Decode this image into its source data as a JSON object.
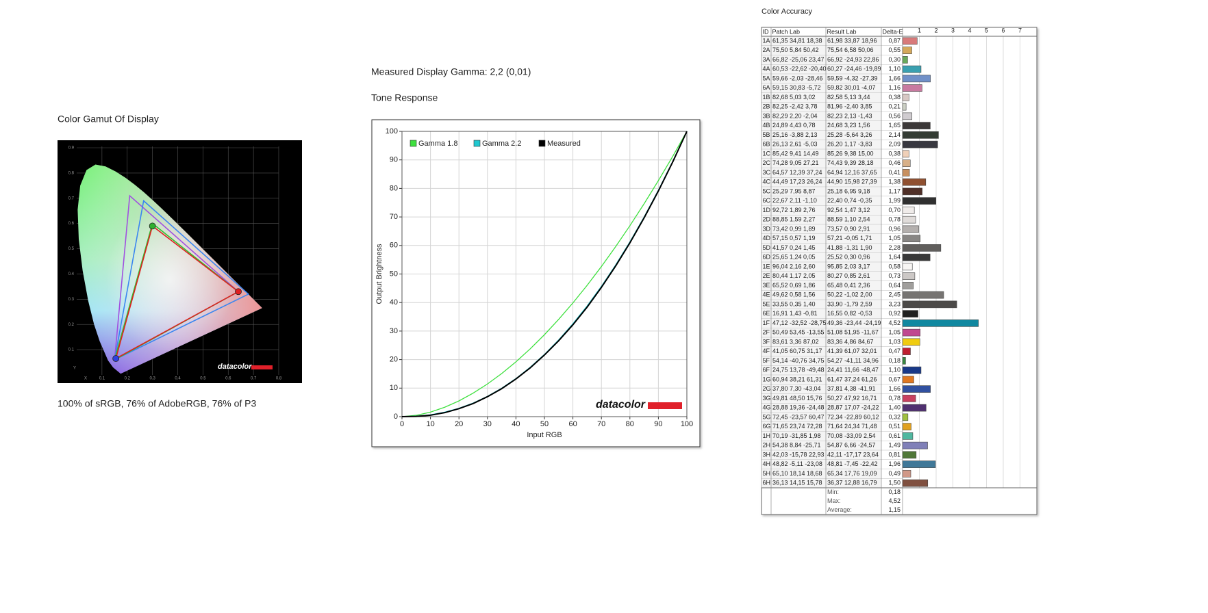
{
  "chart_data": [
    {
      "type": "gamut",
      "title": "Color Gamut Of Display",
      "caption": "100% of sRGB, 76% of AdobeRGB, 76% of P3",
      "x_label": "X",
      "y_label": "Y",
      "xlim": [
        0,
        0.8
      ],
      "ylim": [
        0,
        0.9
      ],
      "xticks": [
        0.1,
        0.2,
        0.3,
        0.4,
        0.5,
        0.6,
        0.7,
        0.8
      ],
      "yticks": [
        0.1,
        0.2,
        0.3,
        0.4,
        0.5,
        0.6,
        0.7,
        0.8,
        0.9
      ],
      "grid": true,
      "watermark": "datacolor",
      "series": [
        {
          "color": "#a050e0",
          "x": [
            0.64,
            0.21,
            0.15
          ],
          "y": [
            0.33,
            0.71,
            0.06
          ]
        },
        {
          "color": "#3a86f0",
          "x": [
            0.68,
            0.265,
            0.15
          ],
          "y": [
            0.32,
            0.69,
            0.06
          ]
        },
        {
          "color": "#30c030",
          "x": [
            0.64,
            0.3,
            0.15
          ],
          "y": [
            0.33,
            0.6,
            0.06
          ]
        },
        {
          "color": "#e02020",
          "x": [
            0.64,
            0.3,
            0.155
          ],
          "y": [
            0.33,
            0.59,
            0.065
          ],
          "marker_colors": [
            "#e02020",
            "#30b030",
            "#3040e0"
          ]
        }
      ]
    },
    {
      "type": "line",
      "heading": "Measured Display Gamma: 2,2 (0,01)",
      "title": "Tone Response",
      "x_label": "Input RGB",
      "y_label": "Output Brightness",
      "x": [
        0,
        5,
        10,
        15,
        20,
        25,
        30,
        35,
        40,
        45,
        50,
        55,
        60,
        65,
        70,
        75,
        80,
        85,
        90,
        95,
        100
      ],
      "series": [
        {
          "name": "Gamma 1.8",
          "color": "#3ee03e",
          "values": [
            0,
            0.46,
            1.58,
            3.29,
            5.52,
            8.25,
            11.45,
            15.11,
            19.22,
            23.76,
            28.72,
            34.09,
            39.87,
            46.05,
            52.62,
            59.58,
            66.92,
            74.64,
            82.73,
            91.18,
            100
          ]
        },
        {
          "name": "Gamma 2.2",
          "color": "#20c8d0",
          "values": [
            0,
            0.14,
            0.63,
            1.54,
            2.9,
            4.74,
            7.08,
            9.93,
            13.32,
            17.26,
            21.76,
            26.84,
            32.51,
            38.76,
            45.62,
            53.11,
            61.21,
            69.94,
            79.31,
            89.33,
            100
          ]
        },
        {
          "name": "Measured",
          "color": "#000000",
          "values": [
            0,
            0.1,
            0.5,
            1.4,
            2.8,
            4.6,
            7.0,
            9.8,
            13.2,
            17.1,
            21.6,
            26.6,
            32.2,
            38.4,
            45.3,
            52.8,
            60.9,
            69.7,
            79.1,
            89.2,
            100
          ]
        }
      ],
      "xlim": [
        0,
        100
      ],
      "ylim": [
        0,
        100
      ],
      "xticks": [
        0,
        10,
        20,
        30,
        40,
        50,
        60,
        70,
        80,
        90,
        100
      ],
      "yticks": [
        0,
        10,
        20,
        30,
        40,
        50,
        60,
        70,
        80,
        90,
        100
      ],
      "grid": true,
      "legend": "top-left",
      "watermark": "datacolor"
    },
    {
      "type": "table-bar",
      "title": "Color Accuracy",
      "columns": [
        "ID",
        "Patch Lab",
        "Result Lab",
        "Delta-E"
      ],
      "categories": [
        "1A",
        "2A",
        "3A",
        "4A",
        "5A",
        "6A",
        "1B",
        "2B",
        "3B",
        "4B",
        "5B",
        "6B",
        "1C",
        "2C",
        "3C",
        "4C",
        "5C",
        "6C",
        "1D",
        "2D",
        "3D",
        "4D",
        "5D",
        "6D",
        "1E",
        "2E",
        "3E",
        "4E",
        "5E",
        "6E",
        "1F",
        "2F",
        "3F",
        "4F",
        "5F",
        "6F",
        "1G",
        "2G",
        "3G",
        "4G",
        "5G",
        "6G",
        "1H",
        "2H",
        "3H",
        "4H",
        "5H",
        "6H"
      ],
      "patch_lab": [
        "61,35 34,81 18,38",
        "75,50 5,84 50,42",
        "66,82 -25,06 23,47",
        "60,53 -22,62 -20,40",
        "59,66 -2,03 -28,46",
        "59,15 30,83 -5,72",
        "82,68 5,03 3,02",
        "82,25 -2,42 3,78",
        "82,29 2,20 -2,04",
        "24,89 4,43 0,78",
        "25,16 -3,88 2,13",
        "26,13 2,61 -5,03",
        "85,42 9,41 14,49",
        "74,28 9,05 27,21",
        "64,57 12,39 37,24",
        "44,49 17,23 26,24",
        "25,29 7,95 8,87",
        "22,67 2,11 -1,10",
        "92,72 1,89 2,76",
        "88,85 1,59 2,27",
        "73,42 0,99 1,89",
        "57,15 0,57 1,19",
        "41,57 0,24 1,45",
        "25,65 1,24 0,05",
        "96,04 2,16 2,60",
        "80,44 1,17 2,05",
        "65,52 0,69 1,86",
        "49,62 0,58 1,56",
        "33,55 0,35 1,40",
        "16,91 1,43 -0,81",
        "47,12 -32,52 -28,75",
        "50,49 53,45 -13,55",
        "83,61 3,36 87,02",
        "41,05 60,75 31,17",
        "54,14 -40,76 34,75",
        "24,75 13,78 -49,48",
        "60,94 38,21 61,31",
        "37,80 7,30 -43,04",
        "49,81 48,50 15,76",
        "28,88 19,36 -24,48",
        "72,45 -23,57 60,47",
        "71,65 23,74 72,28",
        "70,19 -31,85 1,98",
        "54,38 8,84 -25,71",
        "42,03 -15,78 22,93",
        "48,82 -5,11 -23,08",
        "65,10 18,14 18,68",
        "36,13 14,15 15,78"
      ],
      "result_lab": [
        "61,98 33,87 18,96",
        "75,54 6,58 50,06",
        "66,92 -24,93 22,86",
        "60,27 -24,46 -19,89",
        "59,59 -4,32 -27,39",
        "59,82 30,01 -4,07",
        "82,58 5,13 3,44",
        "81,96 -2,40 3,85",
        "82,23 2,13 -1,43",
        "24,68 3,23 1,56",
        "25,28 -5,64 3,26",
        "26,20 1,17 -3,83",
        "85,26 9,38 15,00",
        "74,43 9,39 28,18",
        "64,94 12,16 37,65",
        "44,90 15,98 27,39",
        "25,18 6,95 9,18",
        "22,40 0,74 -0,35",
        "92,54 1,47 3,12",
        "88,59 1,10 2,54",
        "73,57 0,90 2,91",
        "57,21 -0,05 1,71",
        "41,88 -1,31 1,90",
        "25,52 0,30 0,96",
        "95,85 2,03 3,17",
        "80,27 0,85 2,61",
        "65,48 0,41 2,36",
        "50,22 -1,02 2,00",
        "33,90 -1,79 2,59",
        "16,55 0,82 -0,53",
        "49,36 -23,44 -24,19",
        "51,08 51,95 -11,67",
        "83,36 4,86 84,67",
        "41,39 61,07 32,01",
        "54,27 -41,11 34,96",
        "24,41 11,66 -48,47",
        "61,47 37,24 61,26",
        "37,81 4,38 -41,91",
        "50,27 47,92 16,71",
        "28,87 17,07 -24,22",
        "72,34 -22,89 60,12",
        "71,64 24,34 71,48",
        "70,08 -33,09 2,54",
        "54,87 6,66 -24,57",
        "42,11 -17,17 23,64",
        "48,81 -7,45 -22,42",
        "65,34 17,76 19,09",
        "36,37 12,88 16,79"
      ],
      "values": [
        0.87,
        0.55,
        0.3,
        1.1,
        1.66,
        1.16,
        0.38,
        0.21,
        0.56,
        1.65,
        2.14,
        2.09,
        0.38,
        0.46,
        0.41,
        1.38,
        1.17,
        1.99,
        0.7,
        0.78,
        0.96,
        1.05,
        2.28,
        1.64,
        0.58,
        0.73,
        0.64,
        2.45,
        3.23,
        0.92,
        4.52,
        1.05,
        1.03,
        0.47,
        0.18,
        1.1,
        0.67,
        1.66,
        0.78,
        1.4,
        0.32,
        0.51,
        0.61,
        1.49,
        0.81,
        1.96,
        0.49,
        1.5
      ],
      "value_labels": [
        "0,87",
        "0,55",
        "0,30",
        "1,10",
        "1,66",
        "1,16",
        "0,38",
        "0,21",
        "0,56",
        "1,65",
        "2,14",
        "2,09",
        "0,38",
        "0,46",
        "0,41",
        "1,38",
        "1,17",
        "1,99",
        "0,70",
        "0,78",
        "0,96",
        "1,05",
        "2,28",
        "1,64",
        "0,58",
        "0,73",
        "0,64",
        "2,45",
        "3,23",
        "0,92",
        "4,52",
        "1,05",
        "1,03",
        "0,47",
        "0,18",
        "1,10",
        "0,67",
        "1,66",
        "0,78",
        "1,40",
        "0,32",
        "0,51",
        "0,61",
        "1,49",
        "0,81",
        "1,96",
        "0,49",
        "1,50"
      ],
      "colors": [
        "#d87a7a",
        "#d4a85a",
        "#6aaa5a",
        "#3aa0b0",
        "#7090c8",
        "#c87aa0",
        "#d8c8c4",
        "#ccd0c4",
        "#d0ccd0",
        "#3c3838",
        "#343c34",
        "#383840",
        "#f0d0b8",
        "#d8b088",
        "#c89060",
        "#905030",
        "#503028",
        "#303030",
        "#f0ecea",
        "#e0dcda",
        "#b4b0ae",
        "#888684",
        "#605e5c",
        "#383838",
        "#f8f6f4",
        "#ccc8c6",
        "#a09e9c",
        "#767472",
        "#4c4a48",
        "#202020",
        "#1088a0",
        "#c04890",
        "#f0cc10",
        "#c02030",
        "#388840",
        "#183888",
        "#e07820",
        "#3050a0",
        "#c84060",
        "#503070",
        "#a0c040",
        "#e0a020",
        "#50b8a0",
        "#8080b8",
        "#507838",
        "#407898",
        "#d09888",
        "#805040"
      ],
      "xlim": [
        0,
        8
      ],
      "xticks": [
        1,
        2,
        3,
        4,
        5,
        6,
        7
      ],
      "summary_labels": [
        "Min:",
        "Max:",
        "Average:"
      ],
      "summary_values": [
        "0,18",
        "4,52",
        "1,15"
      ]
    }
  ]
}
